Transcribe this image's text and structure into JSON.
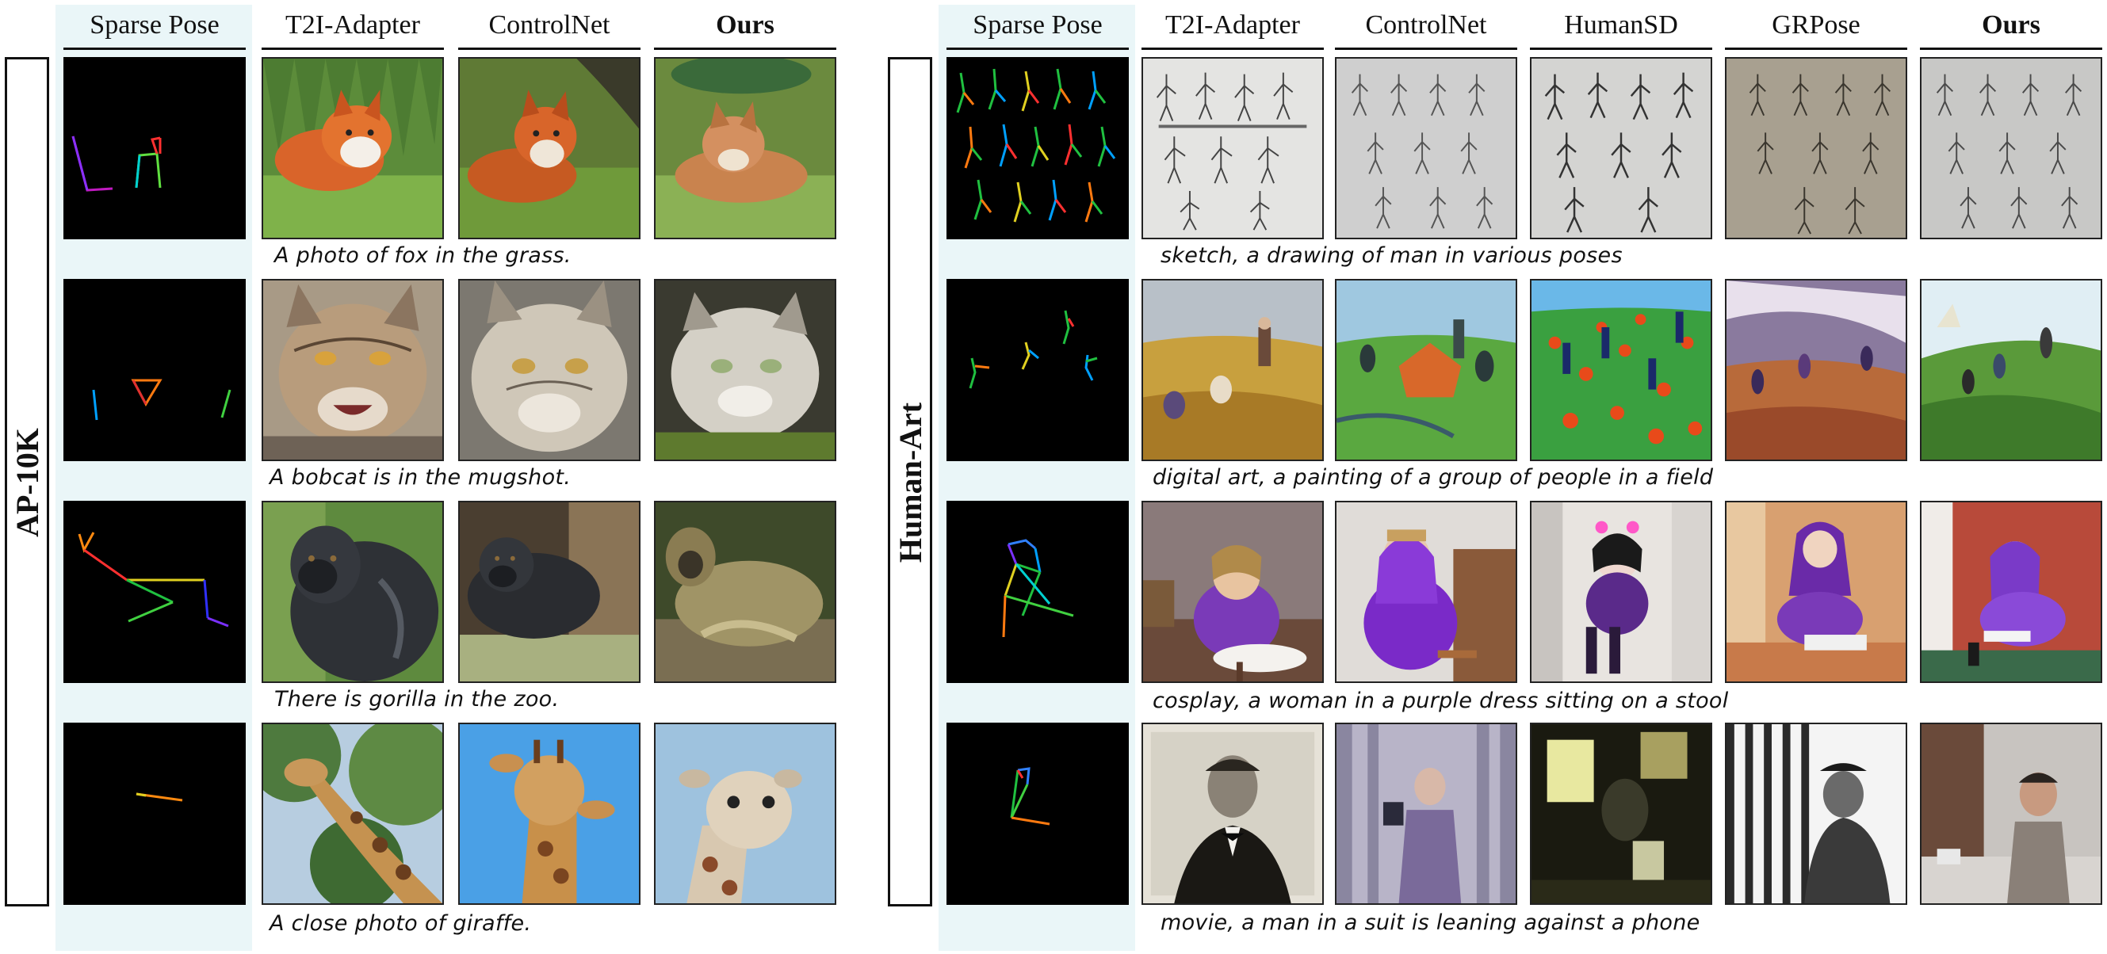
{
  "left_panel": {
    "side_label": "AP-10K",
    "columns": [
      "Sparse Pose",
      "T2I-Adapter",
      "ControlNet",
      "Ours"
    ],
    "captions": [
      "A photo of fox in the grass.",
      "A  bobcat is in the mugshot.",
      "There is gorilla in the zoo.",
      "A close photo of giraffe."
    ]
  },
  "right_panel": {
    "side_label": "Human-Art",
    "columns": [
      "Sparse Pose",
      "T2I-Adapter",
      "ControlNet",
      "HumanSD",
      "GRPose",
      "Ours"
    ],
    "captions": [
      "sketch, a drawing of man in various poses",
      "digital art, a painting of a group of people in a field",
      "cosplay, a woman in a purple dress sitting on a stool",
      "movie, a man in a suit is leaning against a phone"
    ]
  },
  "image_subjects": {
    "left": [
      "fox",
      "bobcat",
      "gorilla",
      "giraffe"
    ],
    "right": [
      "sketch-figures",
      "painted-field-people",
      "cosplay-purple-dress",
      "man-in-suit-phone"
    ]
  },
  "colors": {
    "pose_background": "#000000",
    "column_shade": "#eaf6f8",
    "rule": "#111111"
  }
}
